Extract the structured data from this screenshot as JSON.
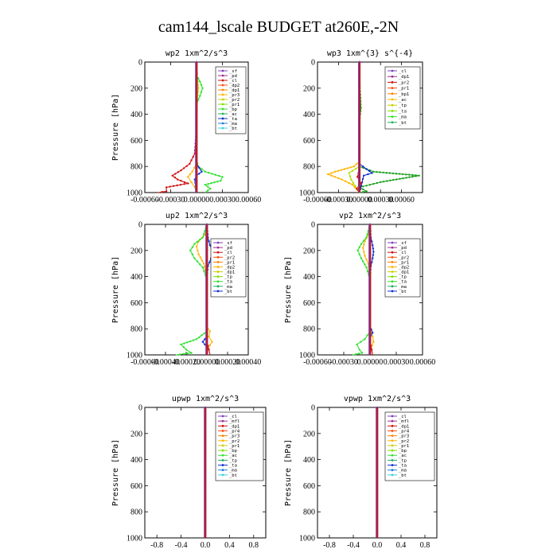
{
  "figure": {
    "title": "cam144_lscale  BUDGET at260E,-2N"
  },
  "chart_data": [
    {
      "type": "line",
      "title": "wp2  1xm^2/s^3",
      "ylabel": "Pressure [hPa]",
      "xlim": [
        -0.0006,
        0.0006
      ],
      "ylim": [
        1000,
        0
      ],
      "xticks": [
        -0.0006,
        -0.0003,
        0.0,
        0.0003,
        0.0006
      ],
      "xtick_labels": [
        "-0.00060",
        "-0.00030",
        "0.00000",
        "0.00030",
        "0.00060"
      ],
      "yticks": [
        0,
        200,
        400,
        600,
        800,
        1000
      ],
      "legend": [
        "_sf",
        "_pd",
        "_cl",
        "_dp2",
        "_dp1",
        "_pr3",
        "_pr2",
        "_pr1",
        "_bp",
        "_ac",
        "_ta",
        "_ma",
        "_bt"
      ],
      "series": [
        {
          "name": "_cl",
          "color": "#d01010",
          "points": [
            [
              0,
              0
            ],
            [
              0,
              500
            ],
            [
              -2e-05,
              700
            ],
            [
              -8e-05,
              780
            ],
            [
              -0.00018,
              830
            ],
            [
              -0.00028,
              870
            ],
            [
              -0.00022,
              900
            ],
            [
              -0.0001,
              930
            ],
            [
              -0.00035,
              960
            ],
            [
              -0.00035,
              990
            ],
            [
              -0.00045,
              1000
            ]
          ]
        },
        {
          "name": "_pr2",
          "color": "#ffb400",
          "points": [
            [
              0,
              0
            ],
            [
              0,
              780
            ],
            [
              -5e-05,
              840
            ],
            [
              -0.0001,
              880
            ],
            [
              -6e-05,
              920
            ],
            [
              -2e-05,
              960
            ],
            [
              0,
              1000
            ]
          ]
        },
        {
          "name": "_pr1",
          "color": "#b0e000",
          "points": [
            [
              0,
              0
            ],
            [
              1e-05,
              120
            ],
            [
              2e-05,
              200
            ],
            [
              1e-05,
              280
            ],
            [
              0,
              400
            ],
            [
              0,
              1000
            ]
          ]
        },
        {
          "name": "_bp",
          "color": "#30e030",
          "points": [
            [
              0,
              0
            ],
            [
              0,
              100
            ],
            [
              4e-05,
              150
            ],
            [
              7e-05,
              200
            ],
            [
              4e-05,
              260
            ],
            [
              0,
              320
            ],
            [
              0,
              750
            ],
            [
              2e-05,
              800
            ],
            [
              0.0001,
              840
            ],
            [
              0.0003,
              880
            ],
            [
              0.00028,
              910
            ],
            [
              0.0001,
              940
            ],
            [
              0.00016,
              970
            ],
            [
              0.0001,
              1000
            ]
          ]
        },
        {
          "name": "_ac",
          "color": "#1030d0",
          "points": [
            [
              0,
              0
            ],
            [
              0,
              780
            ],
            [
              6e-05,
              840
            ],
            [
              0,
              870
            ],
            [
              -2e-05,
              900
            ],
            [
              0,
              1000
            ]
          ]
        },
        {
          "name": "_pd",
          "color": "#8040c0",
          "points": [
            [
              0,
              0
            ],
            [
              0,
              1000
            ]
          ]
        }
      ]
    },
    {
      "type": "line",
      "title": "wp3  1xm^{3} s^{-4}",
      "ylabel": "",
      "xlim": [
        -0.0006,
        0.0009
      ],
      "ylim": [
        1000,
        0
      ],
      "xticks": [
        -0.0006,
        -0.0003,
        0.0,
        0.0003,
        0.0006
      ],
      "xtick_labels": [
        "-0.00060",
        "-0.00030",
        "0.00000",
        "0.00030",
        "0.00060"
      ],
      "yticks": [
        0,
        200,
        400,
        600,
        800,
        1000
      ],
      "legend": [
        "_cl",
        "_dp1",
        "_pr2",
        "_pr1",
        "_bp1",
        "_ac",
        "_tp",
        "_ta",
        "_ma",
        "_bt"
      ],
      "series": [
        {
          "name": "_pr1",
          "color": "#ffb400",
          "points": [
            [
              0,
              0
            ],
            [
              0,
              760
            ],
            [
              -8e-05,
              800
            ],
            [
              -0.00035,
              840
            ],
            [
              -0.00045,
              860
            ],
            [
              -0.00025,
              900
            ],
            [
              -0.0001,
              940
            ],
            [
              0,
              1000
            ]
          ]
        },
        {
          "name": "_pr2",
          "color": "#b0e000",
          "points": [
            [
              0,
              0
            ],
            [
              0,
              800
            ],
            [
              -0.00015,
              850
            ],
            [
              -0.00012,
              900
            ],
            [
              0,
              1000
            ]
          ]
        },
        {
          "name": "_bp1",
          "color": "#20a020",
          "points": [
            [
              0,
              0
            ],
            [
              0,
              150
            ],
            [
              1e-05,
              250
            ],
            [
              2e-05,
              350
            ],
            [
              0,
              450
            ],
            [
              0,
              800
            ],
            [
              0.0002,
              840
            ],
            [
              0.00085,
              870
            ],
            [
              0.0003,
              920
            ],
            [
              0,
              960
            ],
            [
              0.0001,
              990
            ],
            [
              0,
              1000
            ]
          ]
        },
        {
          "name": "_ac",
          "color": "#1030d0",
          "points": [
            [
              0,
              0
            ],
            [
              0,
              780
            ],
            [
              0.0001,
              820
            ],
            [
              0.00018,
              850
            ],
            [
              6e-05,
              870
            ],
            [
              0,
              1000
            ]
          ]
        },
        {
          "name": "_cl",
          "color": "#d01010",
          "points": [
            [
              0,
              0
            ],
            [
              0,
              820
            ],
            [
              -3e-05,
              880
            ],
            [
              2e-05,
              930
            ],
            [
              -4e-05,
              970
            ],
            [
              0,
              1000
            ]
          ]
        },
        {
          "name": "_dp1",
          "color": "#8040c0",
          "points": [
            [
              0,
              0
            ],
            [
              0,
              1000
            ]
          ]
        }
      ]
    },
    {
      "type": "line",
      "title": "up2  1xm^2/s^3",
      "ylabel": "Pressure [hPa]",
      "xlim": [
        -0.0006,
        0.0004
      ],
      "ylim": [
        1000,
        0
      ],
      "xticks": [
        -0.0006,
        -0.0004,
        -0.0002,
        0.0,
        0.0002,
        0.0004
      ],
      "xtick_labels": [
        "-0.00060",
        "-0.00040",
        "-0.00020",
        "0.00000",
        "0.00020",
        "0.00040"
      ],
      "yticks": [
        0,
        200,
        400,
        600,
        800,
        1000
      ],
      "legend": [
        "_sf",
        "_pd",
        "_cl",
        "_pr2",
        "_pr1",
        "_dp2",
        "_dp1",
        "_tp",
        "_ta",
        "_ma",
        "_bt"
      ],
      "series": [
        {
          "name": "_pr2",
          "color": "#ffb400",
          "points": [
            [
              0,
              0
            ],
            [
              -2e-05,
              80
            ],
            [
              -8e-05,
              130
            ],
            [
              -0.0001,
              170
            ],
            [
              -8e-05,
              230
            ],
            [
              -3e-05,
              300
            ],
            [
              0,
              400
            ],
            [
              0,
              780
            ],
            [
              3e-05,
              820
            ],
            [
              2e-05,
              860
            ],
            [
              5e-05,
              900
            ],
            [
              1e-05,
              950
            ],
            [
              0,
              1000
            ]
          ]
        },
        {
          "name": "_pr1",
          "color": "#30e030",
          "points": [
            [
              0,
              0
            ],
            [
              -4e-05,
              100
            ],
            [
              -0.00012,
              150
            ],
            [
              -0.00016,
              200
            ],
            [
              -0.00012,
              260
            ],
            [
              -4e-05,
              330
            ],
            [
              0,
              420
            ],
            [
              0,
              820
            ],
            [
              -0.0001,
              880
            ],
            [
              -0.00025,
              920
            ],
            [
              -0.0002,
              960
            ],
            [
              -0.00015,
              985
            ],
            [
              -0.0003,
              1000
            ]
          ]
        },
        {
          "name": "_dp1",
          "color": "#1030d0",
          "points": [
            [
              0,
              0
            ],
            [
              1e-05,
              100
            ],
            [
              3e-05,
              160
            ],
            [
              6e-05,
              210
            ],
            [
              4e-05,
              260
            ],
            [
              1e-05,
              320
            ],
            [
              0,
              400
            ],
            [
              0,
              860
            ],
            [
              -4e-05,
              900
            ],
            [
              0,
              940
            ],
            [
              0,
              1000
            ]
          ]
        },
        {
          "name": "_cl",
          "color": "#d01010",
          "points": [
            [
              0,
              0
            ],
            [
              0,
              900
            ],
            [
              2e-05,
              960
            ],
            [
              3e-05,
              1000
            ]
          ]
        },
        {
          "name": "_pd",
          "color": "#8040c0",
          "points": [
            [
              0,
              0
            ],
            [
              0,
              1000
            ]
          ]
        }
      ]
    },
    {
      "type": "line",
      "title": "vp2  1xm^2/s^3",
      "ylabel": "Pressure [hPa]",
      "xlim": [
        -0.0006,
        0.0006
      ],
      "ylim": [
        1000,
        0
      ],
      "xticks": [
        -0.0006,
        -0.0003,
        0.0,
        0.0003,
        0.0006
      ],
      "xtick_labels": [
        "-0.00060",
        "-0.00030",
        "0.00000",
        "0.00030",
        "0.00060"
      ],
      "yticks": [
        0,
        200,
        400,
        600,
        800,
        1000
      ],
      "legend": [
        "_sf",
        "_pd",
        "_cl",
        "_pr2",
        "_pr1",
        "_dp2",
        "_dp1",
        "_tp",
        "_ta",
        "_ma",
        "_bt"
      ],
      "series": [
        {
          "name": "_pr2",
          "color": "#ffb400",
          "points": [
            [
              0,
              0
            ],
            [
              -2e-05,
              80
            ],
            [
              -6e-05,
              130
            ],
            [
              -8e-05,
              180
            ],
            [
              -6e-05,
              240
            ],
            [
              -2e-05,
              300
            ],
            [
              0,
              400
            ],
            [
              0,
              800
            ],
            [
              3e-05,
              860
            ],
            [
              4e-05,
              900
            ],
            [
              1e-05,
              950
            ],
            [
              0,
              1000
            ]
          ]
        },
        {
          "name": "_pr1",
          "color": "#30e030",
          "points": [
            [
              0,
              0
            ],
            [
              -4e-05,
              100
            ],
            [
              -0.0001,
              150
            ],
            [
              -0.00014,
              200
            ],
            [
              -0.0001,
              260
            ],
            [
              -4e-05,
              330
            ],
            [
              0,
              420
            ],
            [
              0,
              820
            ],
            [
              -6e-05,
              880
            ],
            [
              -0.00015,
              920
            ],
            [
              -0.00012,
              960
            ],
            [
              -9e-05,
              985
            ],
            [
              -0.0002,
              1000
            ]
          ]
        },
        {
          "name": "_dp1",
          "color": "#1030d0",
          "points": [
            [
              0,
              0
            ],
            [
              1e-05,
              100
            ],
            [
              3e-05,
              160
            ],
            [
              4e-05,
              210
            ],
            [
              3e-05,
              260
            ],
            [
              1e-05,
              320
            ],
            [
              0,
              400
            ],
            [
              0,
              780
            ],
            [
              3e-05,
              830
            ],
            [
              0,
              870
            ],
            [
              0,
              1000
            ]
          ]
        },
        {
          "name": "_cl",
          "color": "#d01010",
          "points": [
            [
              0,
              0
            ],
            [
              0,
              900
            ],
            [
              2e-05,
              960
            ],
            [
              3e-05,
              1000
            ]
          ]
        },
        {
          "name": "_pd",
          "color": "#8040c0",
          "points": [
            [
              0,
              0
            ],
            [
              0,
              1000
            ]
          ]
        }
      ]
    },
    {
      "type": "line",
      "title": "upwp  1xm^2/s^3",
      "ylabel": "Pressure [hPa]",
      "xlim": [
        -1.0,
        1.0
      ],
      "ylim": [
        1000,
        0
      ],
      "xticks": [
        -0.8,
        -0.4,
        0.0,
        0.4,
        0.8
      ],
      "xtick_labels": [
        "-0.8",
        "-0.4",
        "0.0",
        "0.4",
        "0.8"
      ],
      "yticks": [
        0,
        200,
        400,
        600,
        800,
        1000
      ],
      "legend": [
        "_cl",
        "_mfl",
        "_dp1",
        "_pr4",
        "_pr3",
        "_pr2",
        "_pr1",
        "_bp",
        "_ac",
        "_tp",
        "_ta",
        "_ma",
        "_bt"
      ],
      "series": [
        {
          "name": "_cl",
          "color": "#8040c0",
          "points": [
            [
              0,
              0
            ],
            [
              0,
              1000
            ]
          ]
        }
      ]
    },
    {
      "type": "line",
      "title": "vpwp  1xm^2/s^3",
      "ylabel": "Pressure [hPa]",
      "xlim": [
        -1.0,
        1.0
      ],
      "ylim": [
        1000,
        0
      ],
      "xticks": [
        -0.8,
        -0.4,
        0.0,
        0.4,
        0.8
      ],
      "xtick_labels": [
        "-0.8",
        "-0.4",
        "0.0",
        "0.4",
        "0.8"
      ],
      "yticks": [
        0,
        200,
        400,
        600,
        800,
        1000
      ],
      "legend": [
        "_cl",
        "_mfl",
        "_dp1",
        "_pr4",
        "_pr3",
        "_pr2",
        "_pr1",
        "_bp",
        "_ac",
        "_tp",
        "_ta",
        "_ma",
        "_bt"
      ],
      "series": [
        {
          "name": "_cl",
          "color": "#8040c0",
          "points": [
            [
              0,
              0
            ],
            [
              0,
              1000
            ]
          ]
        }
      ]
    }
  ],
  "legend_colors": [
    "#8040c0",
    "#a03090",
    "#d01010",
    "#ff5010",
    "#ff8000",
    "#ffb400",
    "#c8d000",
    "#80e000",
    "#30e030",
    "#20b060",
    "#1030d0",
    "#2080e0",
    "#40d0e0"
  ]
}
